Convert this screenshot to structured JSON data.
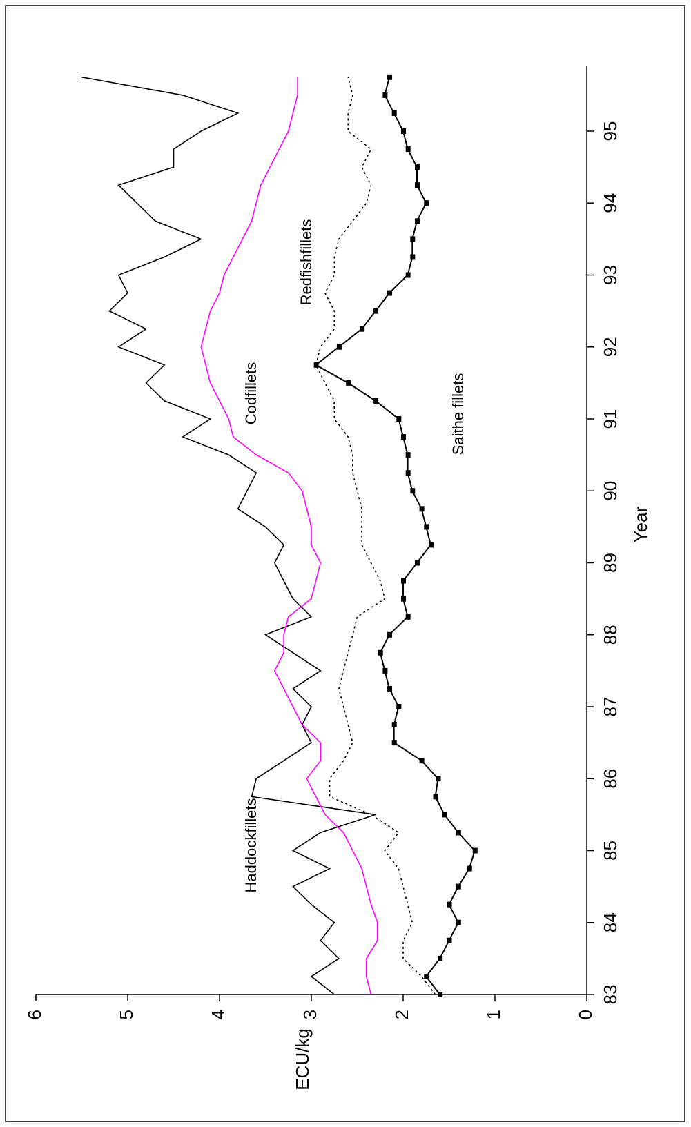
{
  "chart_data": {
    "type": "line",
    "x_label": "Year",
    "y_label": "ECU/kg",
    "x": [
      83,
      83.25,
      83.5,
      83.75,
      84,
      84.25,
      84.5,
      84.75,
      85,
      85.25,
      85.5,
      85.75,
      86,
      86.25,
      86.5,
      86.75,
      87,
      87.25,
      87.5,
      87.75,
      88,
      88.25,
      88.5,
      88.75,
      89,
      89.25,
      89.5,
      89.75,
      90,
      90.25,
      90.5,
      90.75,
      91,
      91.25,
      91.5,
      91.75,
      92,
      92.25,
      92.5,
      92.75,
      93,
      93.25,
      93.5,
      93.75,
      94,
      94.25,
      94.5,
      94.75,
      95,
      95.25,
      95.5,
      95.75
    ],
    "xlim": [
      83,
      95.9
    ],
    "xticks": [
      83,
      84,
      85,
      86,
      87,
      88,
      89,
      90,
      91,
      92,
      93,
      94,
      95
    ],
    "ylim": [
      0,
      6
    ],
    "yticks": [
      0,
      1,
      2,
      3,
      4,
      5,
      6
    ],
    "series": [
      {
        "name": "Haddockfillets",
        "color": "#000000",
        "line_style": "solid",
        "markers": false,
        "values": [
          2.75,
          3.0,
          2.7,
          2.9,
          2.75,
          3.0,
          3.2,
          2.8,
          3.2,
          2.9,
          2.3,
          3.65,
          3.6,
          3.3,
          3.0,
          3.1,
          3.0,
          3.2,
          2.9,
          3.2,
          3.5,
          3.0,
          3.2,
          3.3,
          3.4,
          3.3,
          3.5,
          3.8,
          3.7,
          3.6,
          3.9,
          4.4,
          4.1,
          4.6,
          4.8,
          4.6,
          5.1,
          4.8,
          5.2,
          5.0,
          5.1,
          4.6,
          4.2,
          4.7,
          4.9,
          5.1,
          4.5,
          4.5,
          4.2,
          3.8,
          4.4,
          5.5
        ]
      },
      {
        "name": "Codfillets",
        "color": "#ff00ff",
        "line_style": "solid",
        "markers": false,
        "values": [
          2.35,
          2.4,
          2.4,
          2.28,
          2.28,
          2.35,
          2.4,
          2.45,
          2.55,
          2.65,
          2.85,
          2.95,
          3.05,
          2.9,
          2.9,
          3.1,
          3.2,
          3.3,
          3.4,
          3.3,
          3.3,
          3.25,
          3.0,
          2.95,
          2.9,
          3.0,
          3.0,
          3.05,
          3.1,
          3.25,
          3.6,
          3.85,
          3.9,
          4.0,
          4.1,
          4.15,
          4.2,
          4.15,
          4.1,
          4.0,
          3.95,
          3.85,
          3.75,
          3.65,
          3.6,
          3.55,
          3.45,
          3.35,
          3.25,
          3.2,
          3.15,
          3.15
        ]
      },
      {
        "name": "Redfishfillets",
        "color": "#000000",
        "line_style": "dotted",
        "markers": false,
        "values": [
          1.65,
          1.8,
          2.0,
          2.0,
          1.9,
          1.95,
          2.0,
          2.05,
          2.2,
          2.05,
          2.35,
          2.8,
          2.8,
          2.65,
          2.55,
          2.6,
          2.65,
          2.7,
          2.65,
          2.6,
          2.55,
          2.5,
          2.2,
          2.25,
          2.35,
          2.45,
          2.45,
          2.45,
          2.5,
          2.55,
          2.55,
          2.6,
          2.75,
          2.75,
          2.85,
          2.95,
          2.9,
          2.75,
          2.75,
          2.85,
          2.75,
          2.75,
          2.7,
          2.55,
          2.4,
          2.35,
          2.45,
          2.35,
          2.6,
          2.6,
          2.55,
          2.6
        ]
      },
      {
        "name": "Saithe fillets",
        "color": "#000000",
        "line_style": "solid",
        "markers": true,
        "values": [
          1.6,
          1.75,
          1.6,
          1.5,
          1.4,
          1.5,
          1.4,
          1.28,
          1.22,
          1.4,
          1.55,
          1.65,
          1.62,
          1.8,
          2.1,
          2.1,
          2.05,
          2.15,
          2.2,
          2.25,
          2.15,
          1.95,
          2.0,
          2.0,
          1.85,
          1.7,
          1.75,
          1.8,
          1.9,
          1.95,
          1.95,
          2.0,
          2.05,
          2.3,
          2.6,
          2.95,
          2.7,
          2.45,
          2.3,
          2.15,
          1.95,
          1.9,
          1.9,
          1.85,
          1.75,
          1.85,
          1.85,
          1.95,
          2.0,
          2.1,
          2.2,
          2.15
        ]
      }
    ]
  }
}
